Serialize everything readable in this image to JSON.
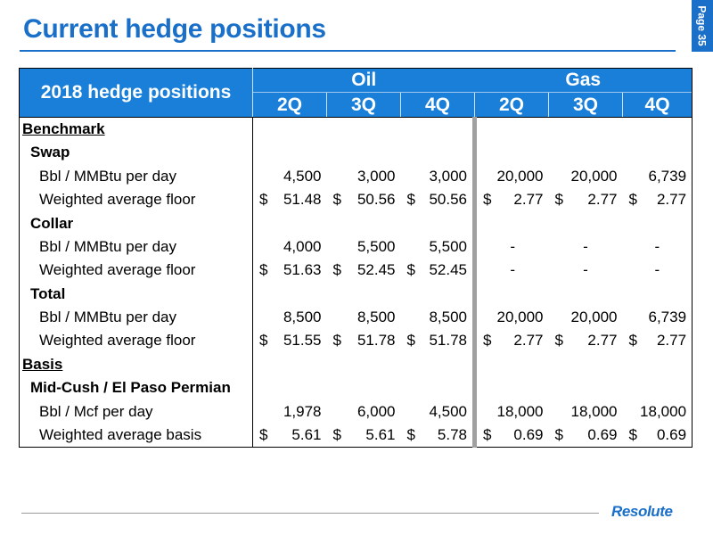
{
  "page": {
    "title": "Current hedge positions",
    "page_label": "Page 35",
    "logo_text": "Resolute"
  },
  "table": {
    "corner": "2018 hedge positions",
    "groups": [
      "Oil",
      "Gas"
    ],
    "quarters": [
      "2Q",
      "3Q",
      "4Q",
      "2Q",
      "3Q",
      "4Q"
    ],
    "currency_symbol": "$",
    "rows": [
      {
        "label": "Benchmark",
        "kind": "section",
        "cells": []
      },
      {
        "label": "Swap",
        "kind": "group",
        "cells": []
      },
      {
        "label": "Bbl / MMBtu per day",
        "kind": "item",
        "dollar": false,
        "cells": [
          "4,500",
          "3,000",
          "3,000",
          "20,000",
          "20,000",
          "6,739"
        ]
      },
      {
        "label": "Weighted average floor",
        "kind": "item",
        "dollar": true,
        "cells": [
          "51.48",
          "50.56",
          "50.56",
          "2.77",
          "2.77",
          "2.77"
        ]
      },
      {
        "label": "Collar",
        "kind": "group",
        "cells": []
      },
      {
        "label": "Bbl / MMBtu per day",
        "kind": "item",
        "dollar": false,
        "cells": [
          "4,000",
          "5,500",
          "5,500",
          "-",
          "-",
          "-"
        ]
      },
      {
        "label": "Weighted average floor",
        "kind": "item",
        "dollar": true,
        "cells": [
          "51.63",
          "52.45",
          "52.45",
          "-",
          "-",
          "-"
        ]
      },
      {
        "label": "Total",
        "kind": "group",
        "cells": []
      },
      {
        "label": "Bbl / MMBtu per day",
        "kind": "item",
        "dollar": false,
        "cells": [
          "8,500",
          "8,500",
          "8,500",
          "20,000",
          "20,000",
          "6,739"
        ]
      },
      {
        "label": "Weighted average floor",
        "kind": "item",
        "dollar": true,
        "cells": [
          "51.55",
          "51.78",
          "51.78",
          "2.77",
          "2.77",
          "2.77"
        ]
      },
      {
        "label": "Basis",
        "kind": "section",
        "cells": []
      },
      {
        "label": "Mid-Cush / El Paso Permian",
        "kind": "group",
        "cells": []
      },
      {
        "label": "Bbl / Mcf per day",
        "kind": "item",
        "dollar": false,
        "cells": [
          "1,978",
          "6,000",
          "4,500",
          "18,000",
          "18,000",
          "18,000"
        ]
      },
      {
        "label": "Weighted average basis",
        "kind": "item",
        "dollar": true,
        "cells": [
          "5.61",
          "5.61",
          "5.78",
          "0.69",
          "0.69",
          "0.69"
        ]
      }
    ]
  },
  "colors": {
    "brand_blue": "#1a6fc9",
    "header_fill": "#1a7fd8",
    "gas_divider": "#a0a0a0"
  }
}
